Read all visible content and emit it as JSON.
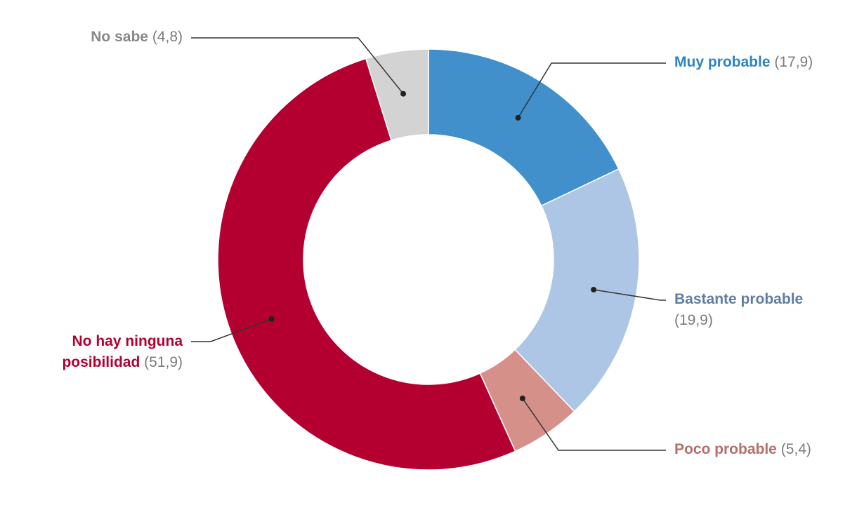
{
  "chart_data": {
    "type": "pie",
    "style": "donut",
    "start_angle_deg": 0,
    "direction": "clockwise",
    "slices": [
      {
        "label": "Muy probable",
        "value": 17.9,
        "value_text": "(17,9)",
        "color": "#4190cc",
        "label_color": "#2e83c4"
      },
      {
        "label": "Bastante probable",
        "value": 19.9,
        "value_text": "(19,9)",
        "color": "#adc6e6",
        "label_color": "#5f7d9f"
      },
      {
        "label": "Poco probable",
        "value": 5.4,
        "value_text": "(5,4)",
        "color": "#d6908a",
        "label_color": "#b46f6a"
      },
      {
        "label": "No hay ninguna posibilidad",
        "label_line1": "No hay ninguna",
        "label_line2": "posibilidad",
        "value": 51.9,
        "value_text": "(51,9)",
        "color": "#b40030",
        "label_color": "#b40030"
      },
      {
        "label": "No sabe",
        "value": 4.8,
        "value_text": "(4,8)",
        "color": "#d3d3d3",
        "label_color": "#888888"
      }
    ],
    "value_text_color": "#7b7b7b",
    "leader_line_color": "#333333"
  }
}
